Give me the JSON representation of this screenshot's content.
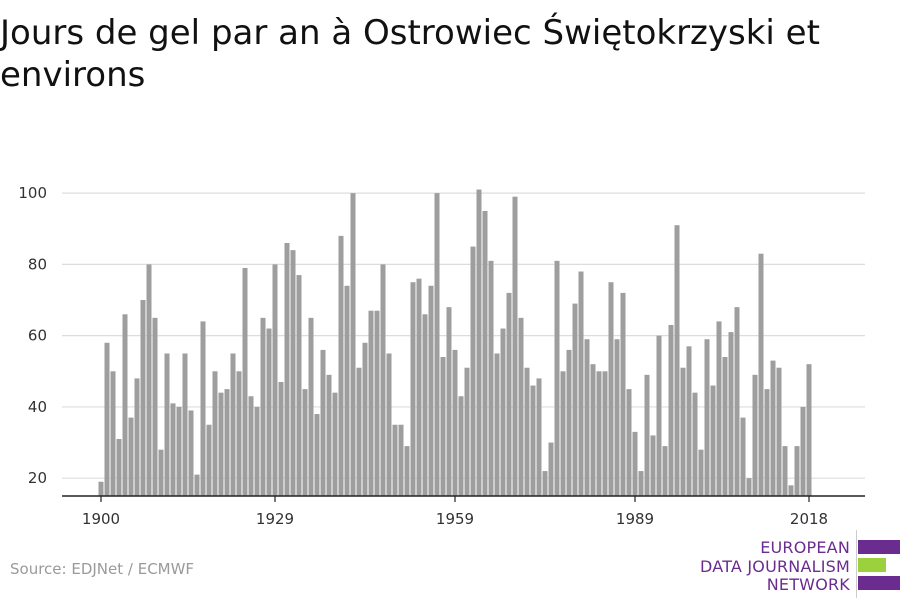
{
  "title": "Jours de gel par an à Ostrowiec Świętokrzyski et environs",
  "source": "Source: EDJNet / ECMWF",
  "logo": {
    "line1": "EUROPEAN",
    "line2": "DATA JOURNALISM",
    "line3": "NETWORK",
    "colors": [
      "#6b2c8f",
      "#9bd13c",
      "#6b2c8f"
    ]
  },
  "colors": {
    "bar": "#9e9e9e",
    "grid": "#dddddd",
    "axis": "#222222"
  },
  "chart_data": {
    "type": "bar",
    "title": "Jours de gel par an à Ostrowiec Świętokrzyski et environs",
    "xlabel": "",
    "ylabel": "",
    "x_start": 1900,
    "x_end": 2018,
    "x_ticks": [
      1900,
      1929,
      1959,
      1989,
      2018
    ],
    "y_ticks": [
      20,
      40,
      60,
      80,
      100
    ],
    "ylim": [
      15,
      102
    ],
    "grid": true,
    "values": [
      19,
      58,
      50,
      31,
      66,
      37,
      48,
      70,
      80,
      65,
      28,
      55,
      41,
      40,
      55,
      39,
      21,
      64,
      35,
      50,
      44,
      45,
      55,
      50,
      79,
      43,
      40,
      65,
      62,
      80,
      47,
      86,
      84,
      77,
      45,
      65,
      38,
      56,
      49,
      44,
      88,
      74,
      100,
      51,
      58,
      67,
      67,
      80,
      55,
      35,
      35,
      29,
      75,
      76,
      66,
      74,
      100,
      54,
      68,
      56,
      43,
      51,
      85,
      101,
      95,
      81,
      55,
      62,
      72,
      99,
      65,
      51,
      46,
      48,
      22,
      30,
      81,
      50,
      56,
      69,
      78,
      59,
      52,
      50,
      50,
      75,
      59,
      72,
      45,
      33,
      22,
      49,
      32,
      60,
      29,
      63,
      91,
      51,
      57,
      44,
      28,
      59,
      46,
      64,
      54,
      61,
      68,
      37,
      20,
      49,
      83,
      45,
      53,
      51,
      29,
      18,
      29,
      40,
      52
    ]
  }
}
